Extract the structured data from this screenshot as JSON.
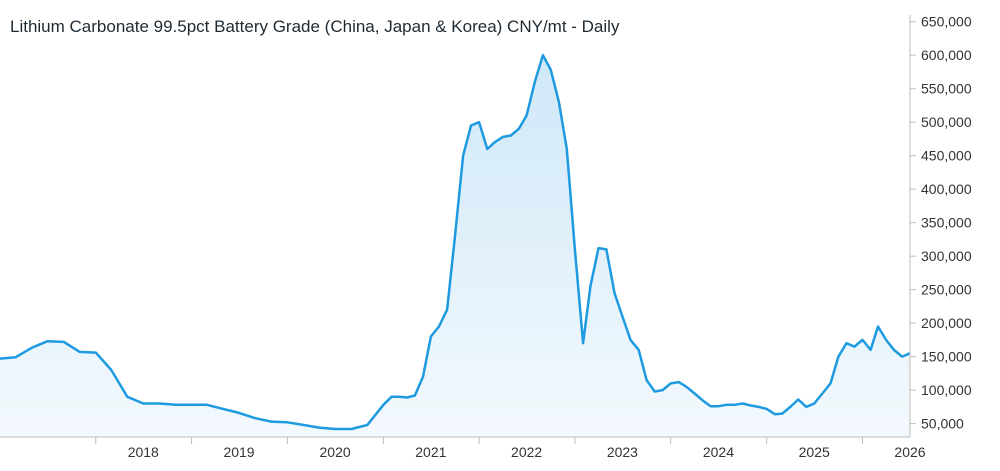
{
  "chart_data": {
    "type": "area",
    "title": "Lithium Carbonate 99.5pct Battery Grade (China, Japan & Korea) CNY/mt - Daily",
    "xlabel": "",
    "ylabel": "",
    "x_tick_labels": [
      "2018",
      "2019",
      "2020",
      "2021",
      "2022",
      "2023",
      "2024",
      "2025",
      "2026"
    ],
    "y_tick_labels": [
      "50,000",
      "100,000",
      "150,000",
      "200,000",
      "250,000",
      "300,000",
      "350,000",
      "400,000",
      "450,000",
      "500,000",
      "550,000",
      "600,000",
      "650,000"
    ],
    "y_ticks": [
      50000,
      100000,
      150000,
      200000,
      250000,
      300000,
      350000,
      400000,
      450000,
      500000,
      550000,
      600000,
      650000
    ],
    "ylim": [
      30000,
      660000
    ],
    "xlim": [
      "2017-01-01",
      "2026-07-01"
    ],
    "grid": false,
    "legend": "none",
    "colors": {
      "line": "#1e9ae0",
      "fill_top": "#cfe8f8",
      "fill_bottom": "#f3f9fd"
    },
    "series": [
      {
        "x": [
          "2017-01-01",
          "2017-03-01",
          "2017-05-01",
          "2017-07-01",
          "2017-09-01",
          "2017-11-01",
          "2018-01-01",
          "2018-03-01",
          "2018-05-01",
          "2018-07-01",
          "2018-09-01",
          "2018-11-01",
          "2019-01-01",
          "2019-03-01",
          "2019-05-01",
          "2019-07-01",
          "2019-09-01",
          "2019-11-01",
          "2020-01-01",
          "2020-03-01",
          "2020-05-01",
          "2020-07-01",
          "2020-09-01",
          "2020-11-01",
          "2021-01-01",
          "2021-02-01",
          "2021-03-01",
          "2021-04-01",
          "2021-05-01",
          "2021-06-01",
          "2021-07-01",
          "2021-08-01",
          "2021-09-01",
          "2021-10-01",
          "2021-11-01",
          "2021-12-01",
          "2022-01-01",
          "2022-02-01",
          "2022-03-01",
          "2022-04-01",
          "2022-05-01",
          "2022-06-01",
          "2022-07-01",
          "2022-08-01",
          "2022-09-01",
          "2022-10-01",
          "2022-11-01",
          "2022-12-01",
          "2023-01-01",
          "2023-02-01",
          "2023-03-01",
          "2023-04-01",
          "2023-05-01",
          "2023-06-01",
          "2023-07-01",
          "2023-08-01",
          "2023-09-01",
          "2023-10-01",
          "2023-11-01",
          "2023-12-01",
          "2024-01-01",
          "2024-02-01",
          "2024-03-01",
          "2024-04-01",
          "2024-05-01",
          "2024-06-01",
          "2024-07-01",
          "2024-08-01",
          "2024-09-01",
          "2024-10-01",
          "2024-11-01",
          "2024-12-01",
          "2025-01-01",
          "2025-02-01",
          "2025-03-01",
          "2025-04-01",
          "2025-05-01",
          "2025-06-01",
          "2025-07-01",
          "2025-08-01",
          "2025-09-01",
          "2025-10-01",
          "2025-11-01",
          "2025-12-01",
          "2026-01-01",
          "2026-02-01",
          "2026-03-01",
          "2026-04-01",
          "2026-05-01",
          "2026-06-01",
          "2026-07-01"
        ],
        "y": [
          147000,
          149000,
          163000,
          173000,
          172000,
          157000,
          156000,
          130000,
          90000,
          80000,
          80000,
          78000,
          78000,
          78000,
          72000,
          66000,
          58000,
          53000,
          52000,
          48000,
          44000,
          42000,
          42000,
          48000,
          78000,
          90000,
          90000,
          89000,
          92000,
          120000,
          180000,
          195000,
          220000,
          330000,
          450000,
          495000,
          500000,
          460000,
          470000,
          478000,
          480000,
          490000,
          510000,
          560000,
          600000,
          578000,
          530000,
          460000,
          310000,
          170000,
          255000,
          312000,
          310000,
          245000,
          210000,
          175000,
          160000,
          115000,
          98000,
          100000,
          110000,
          112000,
          105000,
          95000,
          85000,
          76000,
          76000,
          78000,
          78000,
          80000,
          77000,
          75000,
          72000,
          64000,
          65000,
          75000,
          86000,
          75000,
          80000,
          95000,
          110000,
          150000,
          170000,
          165000,
          175000,
          160000,
          195000,
          175000,
          160000,
          150000,
          155000
        ]
      }
    ]
  }
}
